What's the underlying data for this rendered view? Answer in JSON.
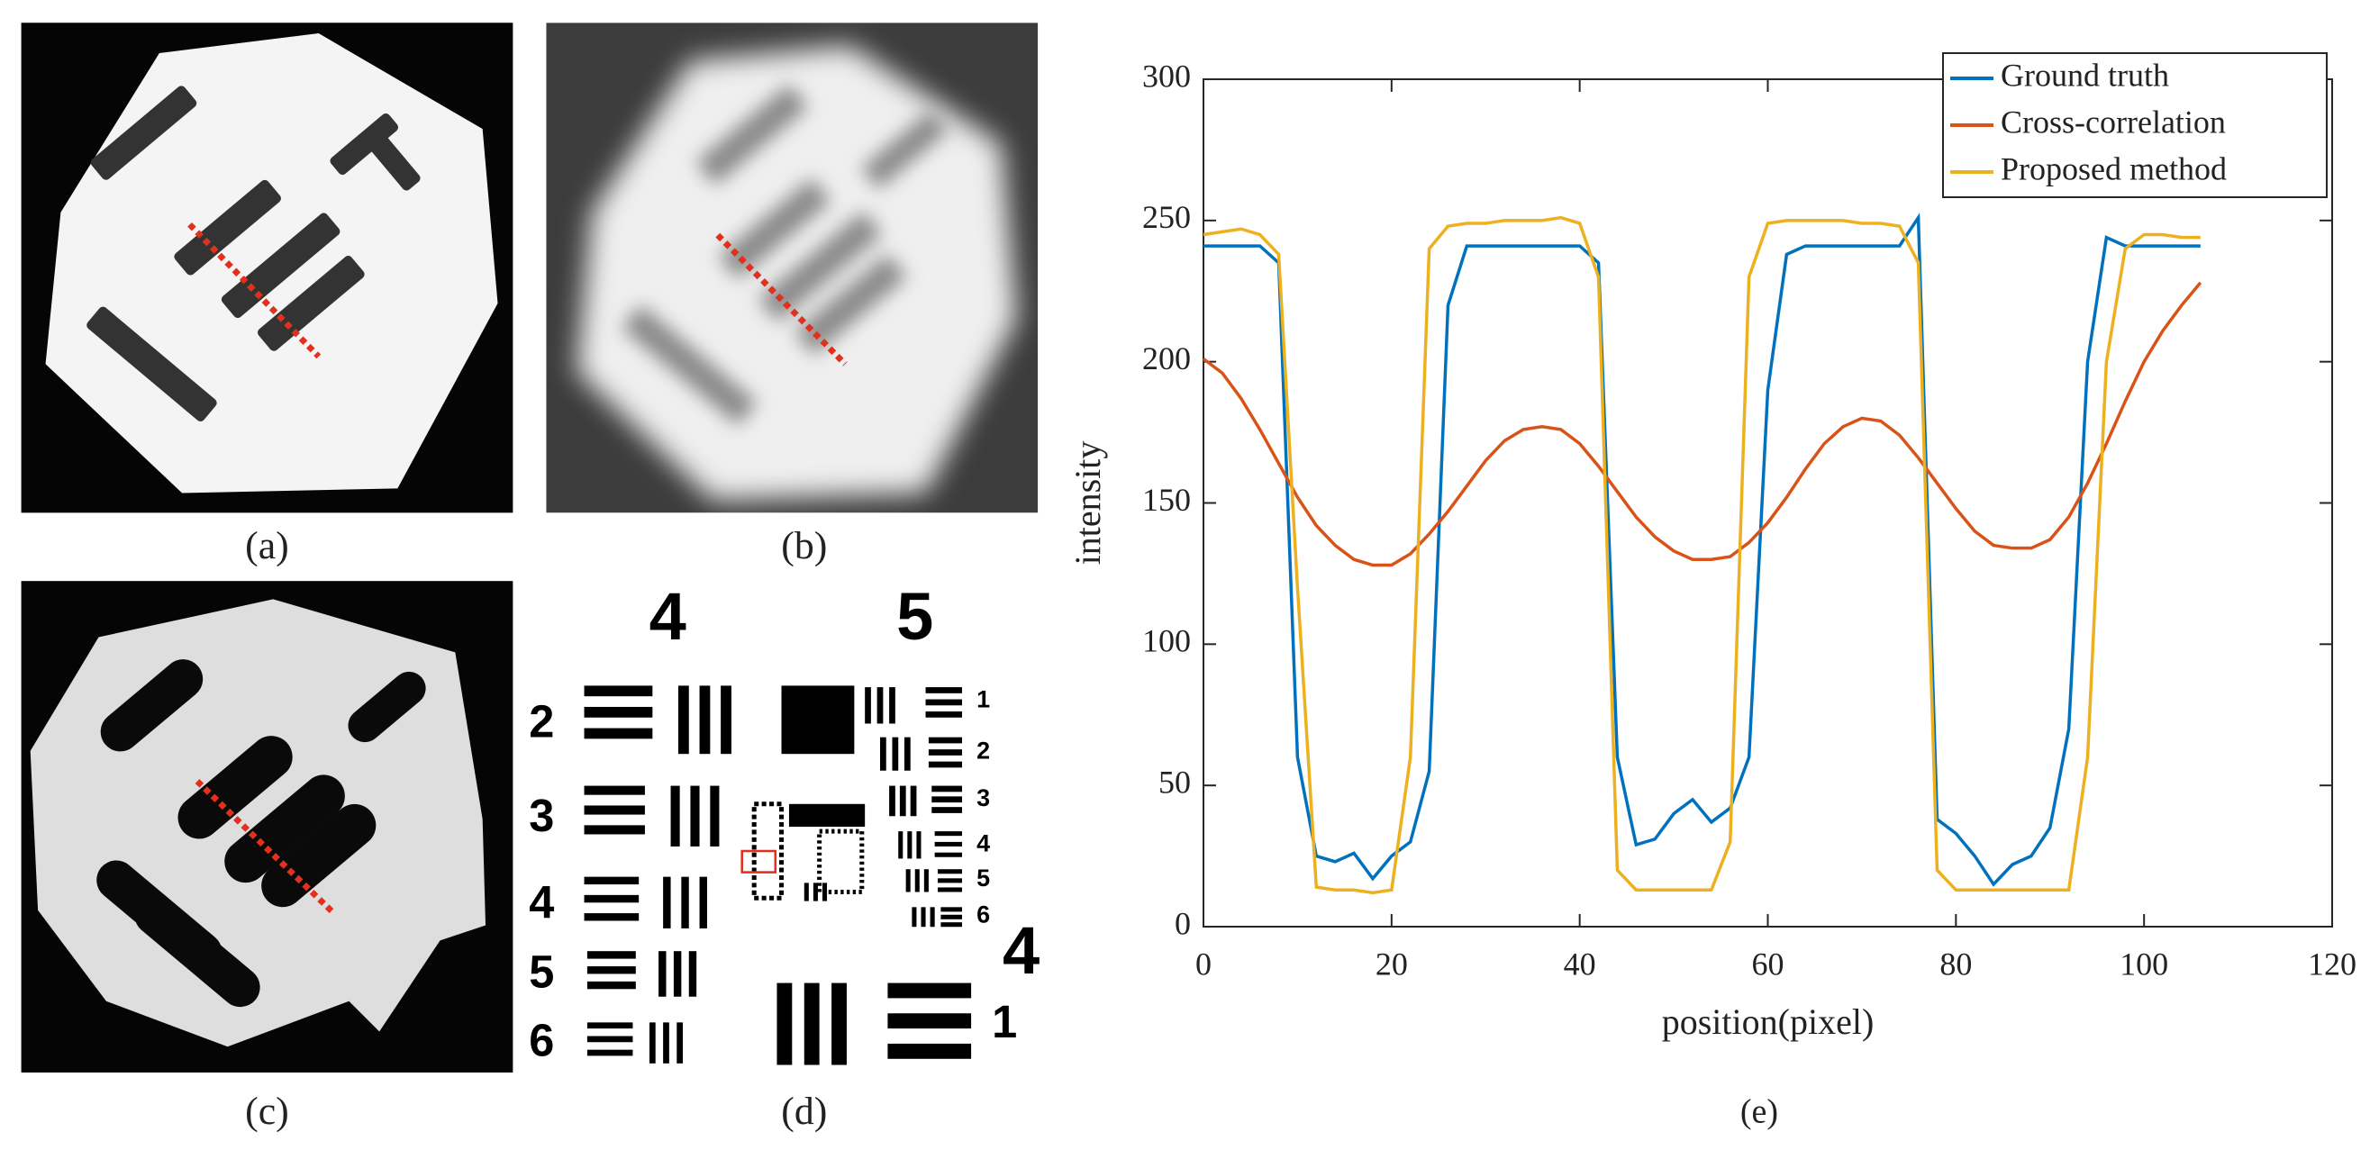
{
  "panel_labels": [
    "(a)",
    "(b)",
    "(c)",
    "(d)",
    "(e)"
  ],
  "panel_d": {
    "labels": [
      "4",
      "5",
      "2",
      "3",
      "4",
      "5",
      "6",
      "1",
      "2",
      "3",
      "4",
      "5",
      "6",
      "4",
      "1"
    ]
  },
  "chart_data": {
    "type": "line",
    "xlabel": "position(pixel)",
    "ylabel": "intensity",
    "xlim": [
      0,
      120
    ],
    "xticks": [
      0,
      20,
      40,
      60,
      80,
      100,
      120
    ],
    "ylim": [
      0,
      300
    ],
    "yticks": [
      0,
      50,
      100,
      150,
      200,
      250,
      300
    ],
    "grid": false,
    "legend": "upper right",
    "x": [
      0,
      2,
      4,
      6,
      8,
      10,
      12,
      14,
      16,
      18,
      20,
      22,
      24,
      26,
      28,
      30,
      32,
      34,
      36,
      38,
      40,
      42,
      44,
      46,
      48,
      50,
      52,
      54,
      56,
      58,
      60,
      62,
      64,
      66,
      68,
      70,
      72,
      74,
      76,
      78,
      80,
      82,
      84,
      86,
      88,
      90,
      92,
      94,
      96,
      98,
      100,
      102,
      104,
      106
    ],
    "series": [
      {
        "name": "Ground truth",
        "color": "#0072bd",
        "values": [
          241,
          241,
          241,
          241,
          235,
          60,
          25,
          23,
          26,
          17,
          25,
          30,
          55,
          220,
          241,
          241,
          241,
          241,
          241,
          241,
          241,
          235,
          60,
          29,
          31,
          40,
          45,
          37,
          42,
          60,
          190,
          238,
          241,
          241,
          241,
          241,
          241,
          241,
          251,
          38,
          33,
          25,
          15,
          22,
          25,
          35,
          70,
          200,
          244,
          241,
          241,
          241,
          241,
          241
        ]
      },
      {
        "name": "Cross-correlation",
        "color": "#d95319",
        "values": [
          201,
          196,
          187,
          176,
          164,
          152,
          142,
          135,
          130,
          128,
          128,
          132,
          139,
          147,
          156,
          165,
          172,
          176,
          177,
          176,
          171,
          163,
          154,
          145,
          138,
          133,
          130,
          130,
          131,
          136,
          143,
          152,
          162,
          171,
          177,
          180,
          179,
          174,
          166,
          157,
          148,
          140,
          135,
          134,
          134,
          137,
          145,
          157,
          171,
          186,
          200,
          211,
          220,
          228
        ]
      },
      {
        "name": "Proposed method",
        "color": "#edb120",
        "values": [
          245,
          246,
          247,
          245,
          238,
          120,
          14,
          13,
          13,
          12,
          13,
          60,
          240,
          248,
          249,
          249,
          250,
          250,
          250,
          251,
          249,
          230,
          20,
          13,
          13,
          13,
          13,
          13,
          30,
          230,
          249,
          250,
          250,
          250,
          250,
          249,
          249,
          248,
          235,
          20,
          13,
          13,
          13,
          13,
          13,
          13,
          13,
          60,
          200,
          240,
          245,
          245,
          244,
          244
        ]
      }
    ]
  }
}
